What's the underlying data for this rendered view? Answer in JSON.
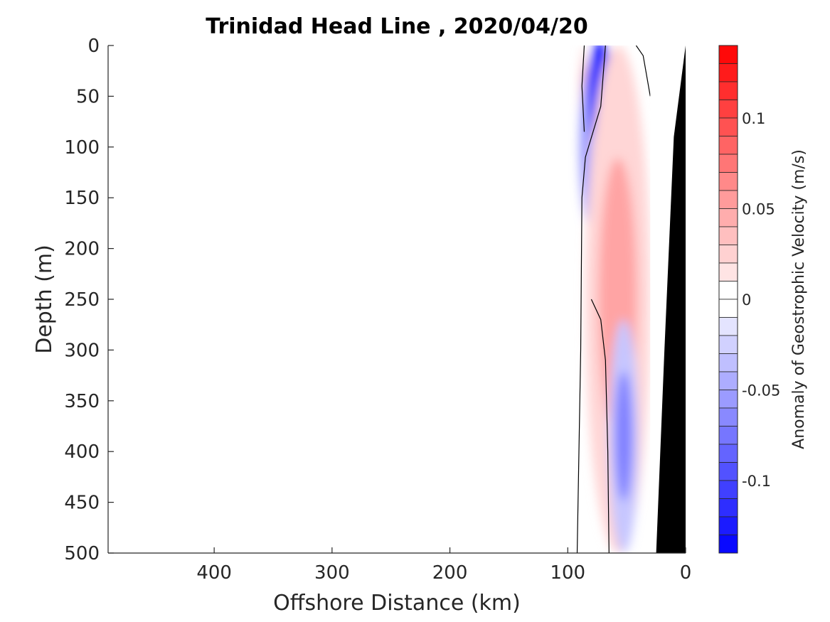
{
  "chart_data": {
    "type": "heatmap",
    "title": "Trinidad Head Line , 2020/04/20",
    "xlabel": "Offshore Distance (km)",
    "ylabel": "Depth (m)",
    "xlim": [
      490,
      0
    ],
    "ylim": [
      0,
      500
    ],
    "x_reversed": true,
    "y_reversed": true,
    "x_ticks": [
      400,
      300,
      200,
      100,
      0
    ],
    "y_ticks": [
      0,
      50,
      100,
      150,
      200,
      250,
      300,
      350,
      400,
      450,
      500
    ],
    "colorbar": {
      "label": "Anomaly of Geostrophic Velocity (m/s)",
      "limits": [
        -0.14,
        0.14
      ],
      "step": 0.01,
      "ticks": [
        0.1,
        0.05,
        0,
        -0.05,
        -0.1
      ],
      "tick_labels": [
        "0.1",
        "0.05",
        "0",
        "-0.05",
        "-0.1"
      ],
      "positive_color": "#ff0000",
      "negative_color": "#0000ff",
      "zero_color": "#ffffff"
    },
    "field": {
      "description_units": "m/s",
      "features": [
        {
          "type": "positive",
          "x_range": [
            82,
            90
          ],
          "depth_range": [
            0,
            90
          ],
          "peak": 0.04
        },
        {
          "type": "negative",
          "x_range": [
            55,
            90
          ],
          "depth_range": [
            0,
            200
          ],
          "peak": -0.12
        },
        {
          "type": "positive",
          "x_range": [
            30,
            85
          ],
          "depth_range": [
            0,
            500
          ],
          "peak": 0.05
        },
        {
          "type": "negative",
          "x_range": [
            40,
            65
          ],
          "depth_range": [
            270,
            500
          ],
          "peak": -0.07
        }
      ],
      "zero_contours": [
        [
          [
            86,
            85
          ],
          [
            88,
            40
          ],
          [
            86,
            0
          ]
        ],
        [
          [
            92,
            500
          ],
          [
            89,
            300
          ],
          [
            88,
            150
          ],
          [
            85,
            110
          ],
          [
            72,
            60
          ],
          [
            68,
            0
          ]
        ],
        [
          [
            65,
            500
          ],
          [
            66,
            400
          ],
          [
            68,
            310
          ],
          [
            72,
            270
          ],
          [
            80,
            250
          ]
        ],
        [
          [
            30,
            50
          ],
          [
            36,
            10
          ],
          [
            42,
            0
          ]
        ]
      ],
      "bottom_topography": [
        [
          0,
          0
        ],
        [
          10,
          90
        ],
        [
          18,
          300
        ],
        [
          25,
          500
        ]
      ]
    }
  }
}
